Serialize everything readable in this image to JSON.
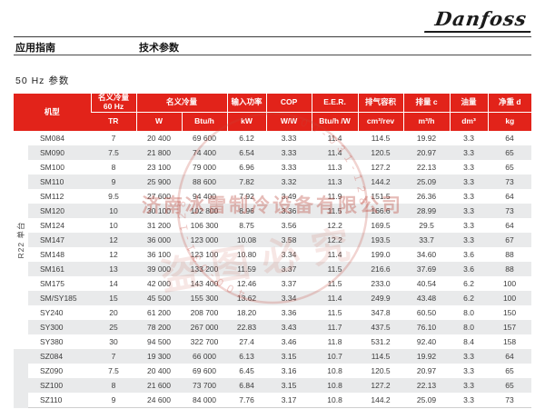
{
  "page": {
    "brand": "Danfoss",
    "breadcrumb_left": "应用指南",
    "breadcrumb_right": "技术参数",
    "section_title": "50 Hz 参数"
  },
  "watermark": {
    "company": "济南冰雷制冷设备有限公司",
    "slogan": "盗图必究",
    "phone": "400-031-128"
  },
  "table": {
    "group_label": "R22 单台",
    "header": {
      "model": "机型",
      "capacity_60hz_line1": "名义冷量",
      "capacity_60hz_line2": "60 Hz",
      "capacity_60hz_unit": "TR",
      "capacity": "名义冷量",
      "capacity_unit_w": "W",
      "capacity_unit_btuh": "Btu/h",
      "power": "输入功率",
      "power_unit": "kW",
      "cop": "COP",
      "cop_unit": "W/W",
      "eer": "E.E.R.",
      "eer_unit": "Btu/h /W",
      "swept_volume": "排气容积",
      "swept_volume_unit": "cm³/rev",
      "displacement": "排量 c",
      "displacement_unit": "m³/h",
      "oil": "油量",
      "oil_unit": "dm³",
      "weight": "净重 d",
      "weight_unit": "kg"
    },
    "rows": [
      {
        "model": "SM084",
        "tr": "7",
        "w": "20 400",
        "btuh": "69 600",
        "kw": "6.12",
        "cop": "3.33",
        "eer": "11.4",
        "vol": "114.5",
        "disp": "19.92",
        "oil": "3.3",
        "kg": "64"
      },
      {
        "model": "SM090",
        "tr": "7.5",
        "w": "21 800",
        "btuh": "74 400",
        "kw": "6.54",
        "cop": "3.33",
        "eer": "11.4",
        "vol": "120.5",
        "disp": "20.97",
        "oil": "3.3",
        "kg": "65"
      },
      {
        "model": "SM100",
        "tr": "8",
        "w": "23 100",
        "btuh": "79 000",
        "kw": "6.96",
        "cop": "3.33",
        "eer": "11.3",
        "vol": "127.2",
        "disp": "22.13",
        "oil": "3.3",
        "kg": "65"
      },
      {
        "model": "SM110",
        "tr": "9",
        "w": "25 900",
        "btuh": "88 600",
        "kw": "7.82",
        "cop": "3.32",
        "eer": "11.3",
        "vol": "144.2",
        "disp": "25.09",
        "oil": "3.3",
        "kg": "73"
      },
      {
        "model": "SM112",
        "tr": "9.5",
        "w": "27 600",
        "btuh": "94 400",
        "kw": "7.92",
        "cop": "3.49",
        "eer": "11.9",
        "vol": "151.5",
        "disp": "26.36",
        "oil": "3.3",
        "kg": "64"
      },
      {
        "model": "SM120",
        "tr": "10",
        "w": "30 100",
        "btuh": "102 800",
        "kw": "8.96",
        "cop": "3.36",
        "eer": "11.5",
        "vol": "166.6",
        "disp": "28.99",
        "oil": "3.3",
        "kg": "73"
      },
      {
        "model": "SM124",
        "tr": "10",
        "w": "31 200",
        "btuh": "106 300",
        "kw": "8.75",
        "cop": "3.56",
        "eer": "12.2",
        "vol": "169.5",
        "disp": "29.5",
        "oil": "3.3",
        "kg": "64"
      },
      {
        "model": "SM147",
        "tr": "12",
        "w": "36 000",
        "btuh": "123 000",
        "kw": "10.08",
        "cop": "3.58",
        "eer": "12.2",
        "vol": "193.5",
        "disp": "33.7",
        "oil": "3.3",
        "kg": "67"
      },
      {
        "model": "SM148",
        "tr": "12",
        "w": "36 100",
        "btuh": "123 100",
        "kw": "10.80",
        "cop": "3.34",
        "eer": "11.4",
        "vol": "199.0",
        "disp": "34.60",
        "oil": "3.6",
        "kg": "88"
      },
      {
        "model": "SM161",
        "tr": "13",
        "w": "39 000",
        "btuh": "133 200",
        "kw": "11.59",
        "cop": "3.37",
        "eer": "11.5",
        "vol": "216.6",
        "disp": "37.69",
        "oil": "3.6",
        "kg": "88"
      },
      {
        "model": "SM175",
        "tr": "14",
        "w": "42 000",
        "btuh": "143 400",
        "kw": "12.46",
        "cop": "3.37",
        "eer": "11.5",
        "vol": "233.0",
        "disp": "40.54",
        "oil": "6.2",
        "kg": "100"
      },
      {
        "model": "SM/SY185",
        "tr": "15",
        "w": "45 500",
        "btuh": "155 300",
        "kw": "13.62",
        "cop": "3.34",
        "eer": "11.4",
        "vol": "249.9",
        "disp": "43.48",
        "oil": "6.2",
        "kg": "100"
      },
      {
        "model": "SY240",
        "tr": "20",
        "w": "61 200",
        "btuh": "208 700",
        "kw": "18.20",
        "cop": "3.36",
        "eer": "11.5",
        "vol": "347.8",
        "disp": "60.50",
        "oil": "8.0",
        "kg": "150"
      },
      {
        "model": "SY300",
        "tr": "25",
        "w": "78 200",
        "btuh": "267 000",
        "kw": "22.83",
        "cop": "3.43",
        "eer": "11.7",
        "vol": "437.5",
        "disp": "76.10",
        "oil": "8.0",
        "kg": "157"
      },
      {
        "model": "SY380",
        "tr": "30",
        "w": "94 500",
        "btuh": "322 700",
        "kw": "27.4",
        "cop": "3.46",
        "eer": "11.8",
        "vol": "531.2",
        "disp": "92.40",
        "oil": "8.4",
        "kg": "158"
      },
      {
        "model": "SZ084",
        "tr": "7",
        "w": "19 300",
        "btuh": "66 000",
        "kw": "6.13",
        "cop": "3.15",
        "eer": "10.7",
        "vol": "114.5",
        "disp": "19.92",
        "oil": "3.3",
        "kg": "64"
      },
      {
        "model": "SZ090",
        "tr": "7.5",
        "w": "20 400",
        "btuh": "69 600",
        "kw": "6.45",
        "cop": "3.16",
        "eer": "10.8",
        "vol": "120.5",
        "disp": "20.97",
        "oil": "3.3",
        "kg": "65"
      },
      {
        "model": "SZ100",
        "tr": "8",
        "w": "21 600",
        "btuh": "73 700",
        "kw": "6.84",
        "cop": "3.15",
        "eer": "10.8",
        "vol": "127.2",
        "disp": "22.13",
        "oil": "3.3",
        "kg": "65"
      },
      {
        "model": "SZ110",
        "tr": "9",
        "w": "24 600",
        "btuh": "84 000",
        "kw": "7.76",
        "cop": "3.17",
        "eer": "10.8",
        "vol": "144.2",
        "disp": "25.09",
        "oil": "3.3",
        "kg": "73"
      }
    ]
  }
}
